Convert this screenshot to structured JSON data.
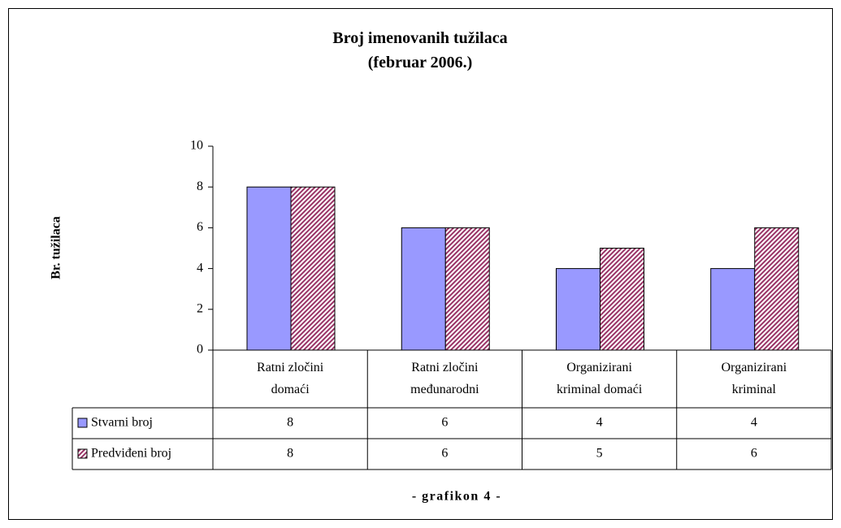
{
  "chart_data": {
    "type": "bar",
    "title": "Broj imenovanih tužilaca\n(februar 2006.)",
    "y_label": "Br. tužilaca",
    "categories": [
      "Ratni zločini\ndomaći",
      "Ratni zločini\nmeđunarodni",
      "Organizirani\nkriminal domaći",
      "Organizirani\nkriminal"
    ],
    "series": [
      {
        "name": "Stvarni broj",
        "color": "#9999ff",
        "pattern": "solid",
        "values": [
          8,
          6,
          4,
          4
        ]
      },
      {
        "name": "Predviđeni broj",
        "color": "#993366",
        "pattern": "diagonal",
        "values": [
          8,
          6,
          5,
          6
        ]
      }
    ],
    "ylim": [
      0,
      10
    ],
    "yticks": [
      0,
      2,
      4,
      6,
      8,
      10
    ],
    "grid": false,
    "data_table": true,
    "footer": "- grafikon 4 -"
  }
}
